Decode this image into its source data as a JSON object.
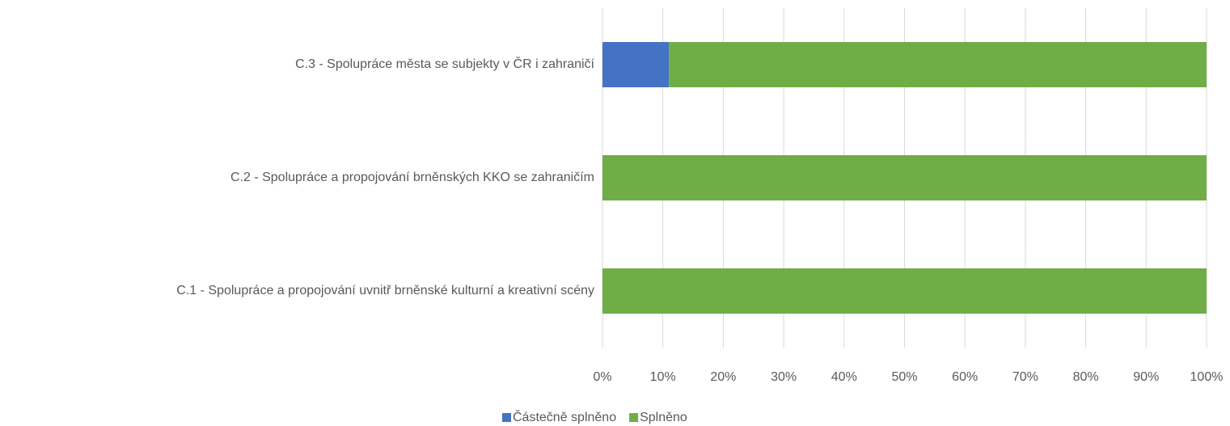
{
  "chart_data": {
    "type": "stacked_barh",
    "categories": [
      "C.1 - Spolupráce a propojování uvnitř brněnské kulturní a kreativní scény",
      "C.2 - Spolupráce a propojování brněnských KKO se zahraničím",
      "C.3 - Spolupráce města se subjekty v ČR i zahraničí"
    ],
    "series": [
      {
        "name": "Částečně splněno",
        "color": "#4472c4",
        "values": [
          0,
          0,
          11
        ]
      },
      {
        "name": "Splněno",
        "color": "#70ad47",
        "values": [
          100,
          100,
          89
        ]
      }
    ],
    "xlim": [
      0,
      100
    ],
    "xticks": [
      {
        "value": 0,
        "label": "0%"
      },
      {
        "value": 10,
        "label": "10%"
      },
      {
        "value": 20,
        "label": "20%"
      },
      {
        "value": 30,
        "label": "30%"
      },
      {
        "value": 40,
        "label": "40%"
      },
      {
        "value": 50,
        "label": "50%"
      },
      {
        "value": 60,
        "label": "60%"
      },
      {
        "value": 70,
        "label": "70%"
      },
      {
        "value": 80,
        "label": "80%"
      },
      {
        "value": 90,
        "label": "90%"
      },
      {
        "value": 100,
        "label": "100%"
      }
    ],
    "grid": true,
    "legend": "bottom"
  }
}
